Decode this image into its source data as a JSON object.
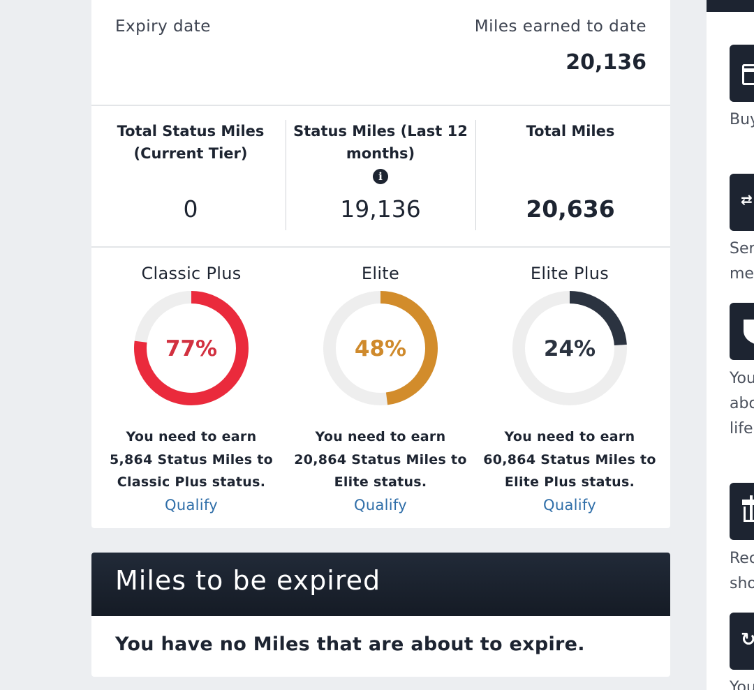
{
  "summary": {
    "expiry_label": "Expiry date",
    "earned_label": "Miles earned to date",
    "earned_value": "20,136"
  },
  "stats": [
    {
      "label": "Total Status Miles (Current Tier)",
      "value": "0"
    },
    {
      "label": "Status Miles (Last 12 months)",
      "value": "19,136",
      "info_icon": "info-icon"
    },
    {
      "label": "Total Miles",
      "value": "20,636"
    }
  ],
  "tiers": [
    {
      "name": "Classic Plus",
      "progress": 77,
      "pct_label": "77%",
      "color": "#ea2a3c",
      "pct_color": "#d23140",
      "need_line1": "You need to earn",
      "need_line2": "5,864 Status Miles to",
      "need_line3": "Classic Plus status.",
      "qualify": "Qualify"
    },
    {
      "name": "Elite",
      "progress": 48,
      "pct_label": "48%",
      "color": "#d28c2b",
      "pct_color": "#cf8a2c",
      "need_line1": "You need to earn",
      "need_line2": "20,864 Status Miles to",
      "need_line3": "Elite status.",
      "qualify": "Qualify"
    },
    {
      "name": "Elite Plus",
      "progress": 24,
      "pct_label": "24%",
      "color": "#2b3340",
      "pct_color": "#2b3340",
      "need_line1": "You need to earn",
      "need_line2": "60,864 Status Miles to",
      "need_line3": "Elite Plus status.",
      "qualify": "Qualify"
    }
  ],
  "track_color": "#eeeeee",
  "expire": {
    "title": "Miles to be expired",
    "message": "You have no Miles that are about to expire."
  },
  "sidebar": {
    "items": [
      {
        "icon": "card-icon",
        "text_lines": [
          "Buy"
        ]
      },
      {
        "icon": "transfer-arrows-icon",
        "text_lines": [
          "Ser",
          "me"
        ]
      },
      {
        "icon": "shield-icon",
        "text_lines": [
          "You",
          "abo",
          "life"
        ]
      },
      {
        "icon": "gift-icon",
        "text_lines": [
          "Rec",
          "sho"
        ]
      },
      {
        "icon": "refresh-icon",
        "text_lines": [
          "You"
        ]
      }
    ]
  }
}
